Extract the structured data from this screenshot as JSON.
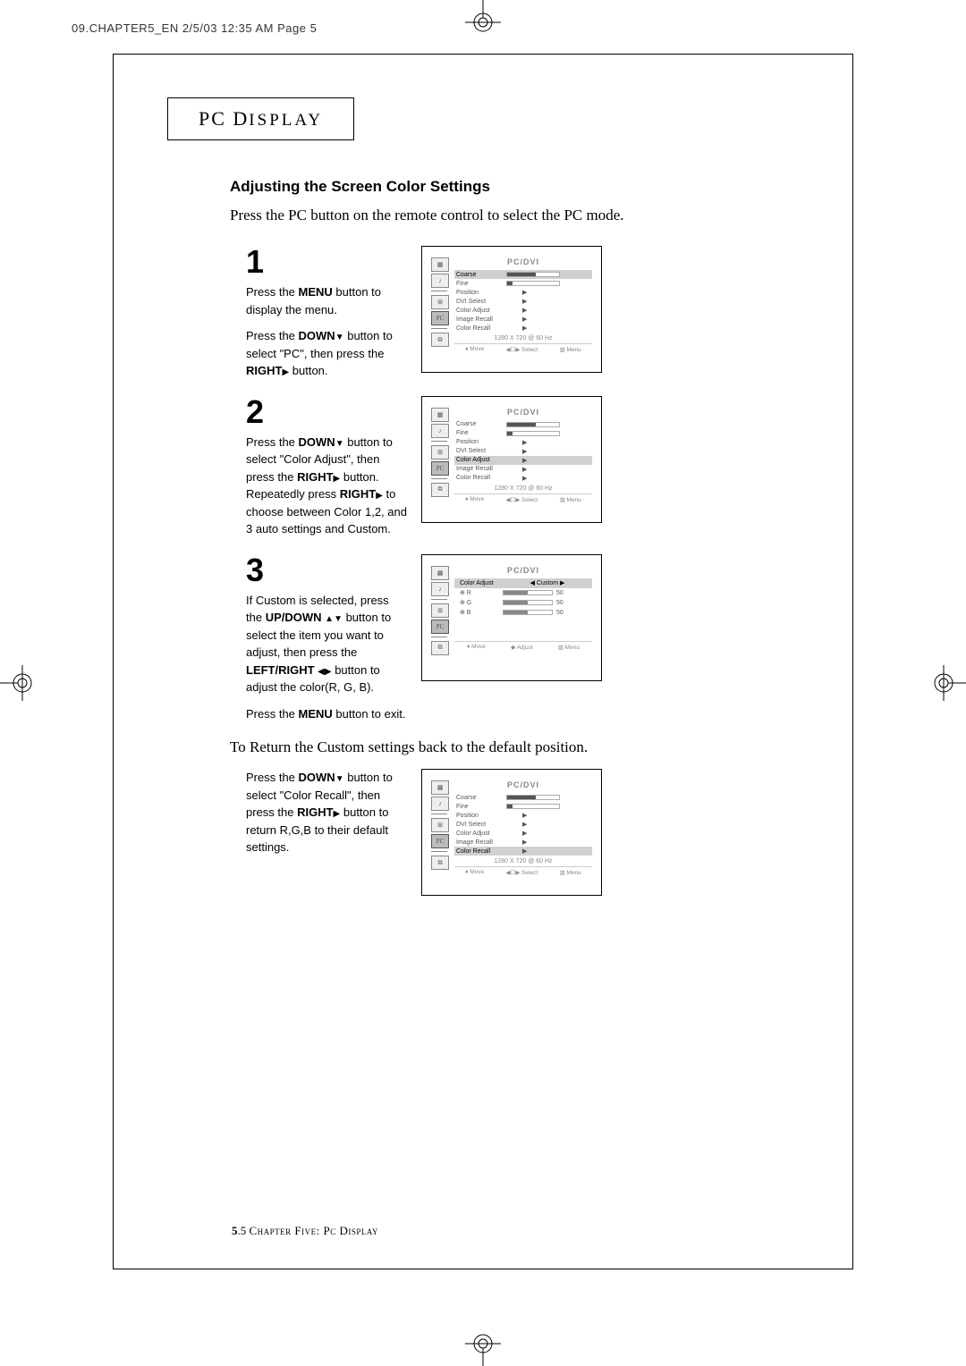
{
  "header_line": "09.CHAPTER5_EN  2/5/03 12:35 AM  Page 5",
  "section_title_main": "PC D",
  "section_title_rest": "ISPLAY",
  "subtitle": "Adjusting the Screen Color Settings",
  "intro": "Press the PC button on the remote control to select the PC mode.",
  "steps": [
    {
      "num": "1",
      "lines": [
        {
          "t": "Press the ",
          "b": "MENU",
          "a": " button to display the menu."
        },
        {
          "spacer": true
        },
        {
          "t": "Press the ",
          "b": "DOWN",
          "icon": "down",
          "a": " button to select \"PC\", then press the "
        },
        {
          "b": "RIGHT",
          "icon": "right",
          "a": " button."
        }
      ],
      "osd": {
        "title": "PC/DVI",
        "rows": [
          {
            "label": "Coarse",
            "type": "bar",
            "fill": 55,
            "hl": true
          },
          {
            "label": "Fine",
            "type": "bar",
            "fill": 10
          },
          {
            "label": "Position",
            "type": "arrow"
          },
          {
            "label": "DVI Select",
            "type": "arrow"
          },
          {
            "label": "Color Adjust",
            "type": "arrow"
          },
          {
            "label": "Image Recall",
            "type": "arrow"
          },
          {
            "label": "Color Recall",
            "type": "arrow"
          }
        ],
        "res": "1280 X 720 @ 60 Hz",
        "footer": [
          "♦ Move",
          "◀☐▶ Select",
          "▥ Menu"
        ]
      }
    },
    {
      "num": "2",
      "lines": [
        {
          "t": "Press the ",
          "b": "DOWN",
          "icon": "down",
          "a": " button to select \"Color Adjust\", then press the "
        },
        {
          "b": "RIGHT",
          "icon": "right",
          "a": " button. Repeatedly press "
        },
        {
          "b": "RIGHT",
          "icon": "right",
          "a": " to choose between Color 1,2, and 3 auto settings and Custom."
        }
      ],
      "osd": {
        "title": "PC/DVI",
        "rows": [
          {
            "label": "Coarse",
            "type": "bar",
            "fill": 55
          },
          {
            "label": "Fine",
            "type": "bar",
            "fill": 10
          },
          {
            "label": "Position",
            "type": "arrow"
          },
          {
            "label": "DVI Select",
            "type": "arrow"
          },
          {
            "label": "Color Adjust",
            "type": "arrow",
            "hl": true
          },
          {
            "label": "Image Recall",
            "type": "arrow"
          },
          {
            "label": "Color Recall",
            "type": "arrow"
          }
        ],
        "res": "1280 X 720 @ 60 Hz",
        "footer": [
          "♦ Move",
          "◀☐▶ Select",
          "▥ Menu"
        ]
      }
    },
    {
      "num": "3",
      "lines": [
        {
          "t": "If Custom is selected, press the ",
          "b": "UP/DOWN",
          "a": " "
        },
        {
          "icon": "up"
        },
        {
          "icon": "down",
          "a": " button to select the item you want to adjust, then press the "
        },
        {
          "b": "LEFT/RIGHT ",
          "icon": "left"
        },
        {
          "icon": "right",
          "a": " button to adjust  the color(R, G, B)."
        },
        {
          "spacer": true
        },
        {
          "t": "Press the ",
          "b": "MENU",
          "a": " button to exit."
        }
      ],
      "osd_custom": {
        "title": "PC/DVI",
        "header_label": "Color Adjust",
        "header_value": "◀ Custom ▶",
        "channels": [
          {
            "label": "⊕ R",
            "val": "50",
            "fill": 50
          },
          {
            "label": "⊕ G",
            "val": "50",
            "fill": 50
          },
          {
            "label": "⊕ B",
            "val": "50",
            "fill": 50
          }
        ],
        "footer": [
          "♦ Move",
          "◆ Adjust",
          "▥ Menu"
        ]
      }
    }
  ],
  "note": "To Return the Custom settings back to the default position.",
  "recall": {
    "lines": [
      {
        "t": "Press the ",
        "b": "DOWN",
        "icon": "down",
        "a": " button to select \"Color Recall\", then press the "
      },
      {
        "b": "RIGHT",
        "icon": "right",
        "a": " button to return R,G,B to their default settings."
      }
    ],
    "osd": {
      "title": "PC/DVI",
      "rows": [
        {
          "label": "Coarse",
          "type": "bar",
          "fill": 55
        },
        {
          "label": "Fine",
          "type": "bar",
          "fill": 10
        },
        {
          "label": "Position",
          "type": "arrow"
        },
        {
          "label": "DVI Select",
          "type": "arrow"
        },
        {
          "label": "Color Adjust",
          "type": "arrow"
        },
        {
          "label": "Image Recall",
          "type": "arrow"
        },
        {
          "label": "Color Recall",
          "type": "arrow",
          "hl": true
        }
      ],
      "res": "1280 X 720 @ 60 Hz",
      "footer": [
        "♦ Move",
        "◀☐▶ Select",
        "▥ Menu"
      ]
    }
  },
  "footer_page": "5",
  "footer_sub": ".5",
  "footer_text": " Chapter Five: Pc Display"
}
